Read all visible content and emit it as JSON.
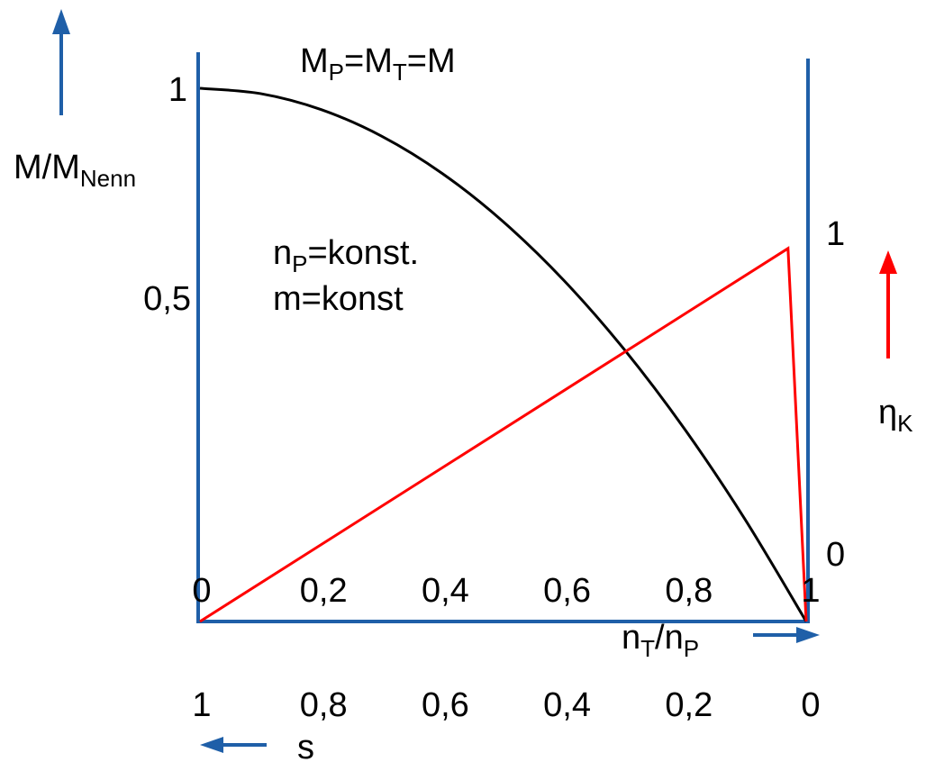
{
  "chart_data": {
    "type": "line",
    "title": "M_P=M_T=M",
    "title_parts": {
      "a": "M",
      "a_sub": "P",
      "b": "=M",
      "b_sub": "T",
      "c": "=M"
    },
    "annotation": {
      "line1": {
        "a": "n",
        "a_sub": "P",
        "b": "=konst."
      },
      "line2": "m=konst"
    },
    "x_axis": {
      "label": {
        "a": "n",
        "a_sub": "T",
        "b": "/n",
        "b_sub": "P"
      },
      "range": [
        0,
        1
      ],
      "ticks": [
        0,
        0.2,
        0.4,
        0.6,
        0.8,
        1
      ],
      "tick_labels": [
        "0",
        "0,2",
        "0,4",
        "0,6",
        "0,8",
        "1"
      ],
      "direction": "right"
    },
    "s_axis": {
      "label": "s",
      "tick_labels": [
        "1",
        "0,8",
        "0,6",
        "0,4",
        "0,2",
        "0"
      ],
      "direction": "left"
    },
    "y_left": {
      "label": {
        "a": "M/M",
        "a_sub": "Nenn"
      },
      "range": [
        0,
        1
      ],
      "ticks": [
        0.5,
        1
      ],
      "tick_labels": [
        "0,5",
        "1"
      ],
      "color": "#1f5fa8"
    },
    "y_right": {
      "label": {
        "a": "η",
        "a_sub": "K"
      },
      "range": [
        0,
        1
      ],
      "ticks": [
        0,
        1
      ],
      "tick_labels": [
        "0",
        "1"
      ],
      "arrow_color": "#ff0000"
    },
    "series": [
      {
        "axis": "left",
        "color": "#000000",
        "x": [
          0,
          0.1,
          0.2,
          0.3,
          0.4,
          0.5,
          0.6,
          0.7,
          0.8,
          0.9,
          1.0
        ],
        "y": [
          1.0,
          0.99,
          0.96,
          0.91,
          0.84,
          0.75,
          0.64,
          0.51,
          0.36,
          0.19,
          0.0
        ]
      },
      {
        "axis": "right",
        "color": "#ff0000",
        "x": [
          0,
          0.97,
          1.0
        ],
        "y": [
          0,
          0.97,
          0
        ]
      }
    ]
  }
}
